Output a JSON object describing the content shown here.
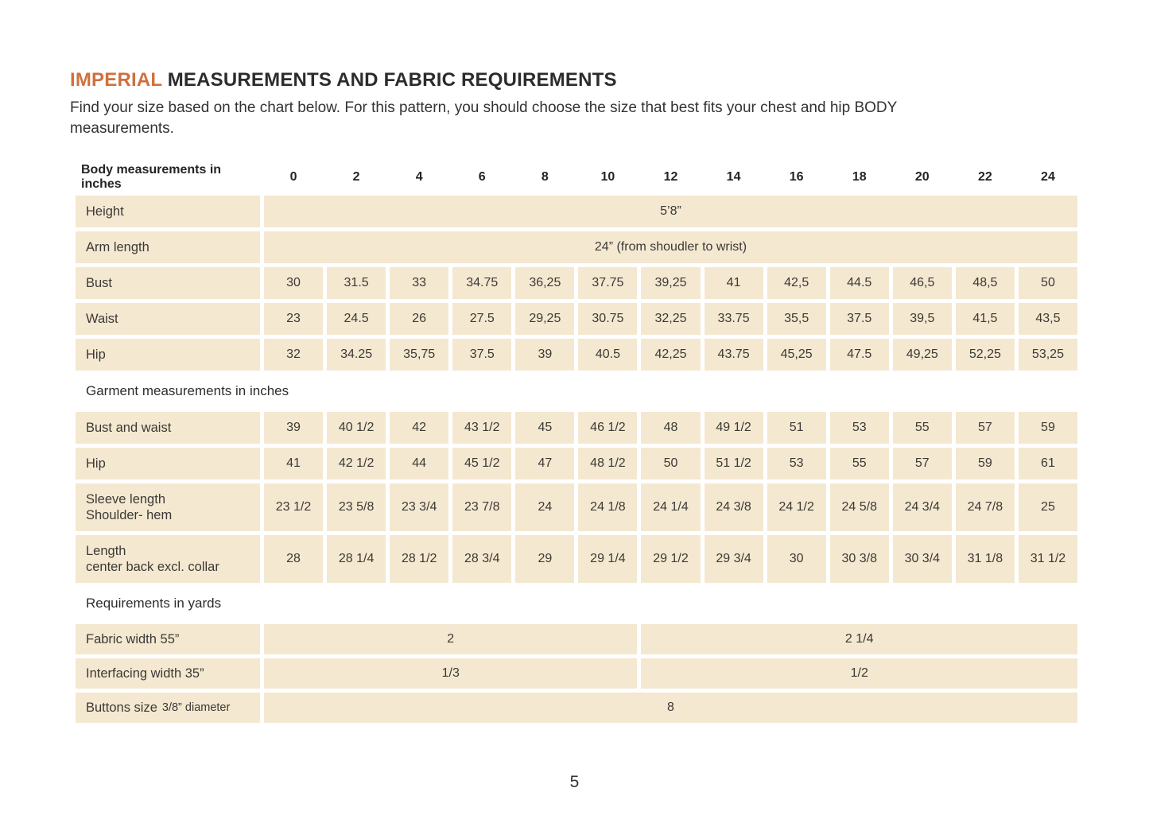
{
  "title": {
    "highlight": "IMPERIAL",
    "rest": " MEASUREMENTS AND FABRIC REQUIREMENTS"
  },
  "intro": "Find your size based on the chart below. For this pattern, you should choose the size that best fits your chest and hip BODY measurements.",
  "colors": {
    "accent": "#d0703e",
    "cell_background": "#f4e8d1",
    "text": "#3c3a35"
  },
  "page": {
    "number": "5"
  },
  "size_chart": {
    "header_label": "Body measurements in inches",
    "sizes": [
      "0",
      "2",
      "4",
      "6",
      "8",
      "10",
      "12",
      "14",
      "16",
      "18",
      "20",
      "22",
      "24"
    ],
    "body_rows": [
      {
        "label": "Height",
        "span_value": "5’8”"
      },
      {
        "label": "Arm length",
        "span_value": "24” (from shoudler to wrist)"
      },
      {
        "label": "Bust",
        "values": [
          "30",
          "31.5",
          "33",
          "34.75",
          "36,25",
          "37.75",
          "39,25",
          "41",
          "42,5",
          "44.5",
          "46,5",
          "48,5",
          "50"
        ]
      },
      {
        "label": "Waist",
        "values": [
          "23",
          "24.5",
          "26",
          "27.5",
          "29,25",
          "30.75",
          "32,25",
          "33.75",
          "35,5",
          "37.5",
          "39,5",
          "41,5",
          "43,5"
        ]
      },
      {
        "label": "Hip",
        "values": [
          "32",
          "34.25",
          "35,75",
          "37.5",
          "39",
          "40.5",
          "42,25",
          "43.75",
          "45,25",
          "47.5",
          "49,25",
          "52,25",
          "53,25"
        ]
      }
    ],
    "garment_section_label": "Garment measurements in inches",
    "garment_rows": [
      {
        "label": "Bust and waist",
        "values": [
          "39",
          "40 1/2",
          "42",
          "43 1/2",
          "45",
          "46 1/2",
          "48",
          "49 1/2",
          "51",
          "53",
          "55",
          "57",
          "59"
        ]
      },
      {
        "label": "Hip",
        "values": [
          "41",
          "42 1/2",
          "44",
          "45 1/2",
          "47",
          "48 1/2",
          "50",
          "51 1/2",
          "53",
          "55",
          "57",
          "59",
          "61"
        ]
      },
      {
        "label": "Sleeve length",
        "sublabel": "Shoulder- hem",
        "values": [
          "23 1/2",
          "23 5/8",
          "23 3/4",
          "23 7/8",
          "24",
          "24 1/8",
          "24 1/4",
          "24 3/8",
          "24 1/2",
          "24 5/8",
          "24 3/4",
          "24 7/8",
          "25"
        ]
      },
      {
        "label": "Length",
        "sublabel": "center back excl. collar",
        "values": [
          "28",
          "28 1/4",
          "28 1/2",
          "28 3/4",
          "29",
          "29 1/4",
          "29 1/2",
          "29 3/4",
          "30",
          "30 3/8",
          "30 3/4",
          "31 1/8",
          "31 1/2"
        ]
      }
    ],
    "requirements_section_label": "Requirements in yards",
    "requirement_rows": [
      {
        "label": "Fabric width 55”",
        "left_value": "2",
        "right_value": "2 1/4"
      },
      {
        "label": "Interfacing width 35”",
        "left_value": "1/3",
        "right_value": "1/2"
      },
      {
        "label": "Buttons size",
        "label_detail": "3/8” diameter",
        "full_value": "8"
      }
    ]
  }
}
